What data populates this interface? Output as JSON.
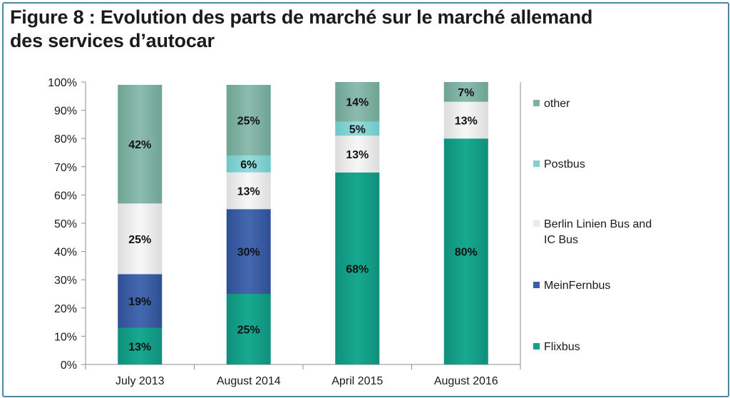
{
  "title_line1": "Figure 8 : Evolution des parts de marché sur le marché allemand",
  "title_line2": "des services d’autocar",
  "chart_data": {
    "type": "bar",
    "stacked": true,
    "categories": [
      "July 2013",
      "August 2014",
      "April 2015",
      "August 2016"
    ],
    "yticks": [
      "0%",
      "10%",
      "20%",
      "30%",
      "40%",
      "50%",
      "60%",
      "70%",
      "80%",
      "90%",
      "100%"
    ],
    "ylim": [
      0,
      100
    ],
    "series": [
      {
        "name": "Flixbus",
        "color": "#14a08b",
        "values": [
          13,
          25,
          68,
          80
        ],
        "labels": [
          "13%",
          "25%",
          "68%",
          "80%"
        ]
      },
      {
        "name": "MeinFernbus",
        "color": "#3a5ea6",
        "values": [
          19,
          30,
          0,
          0
        ],
        "labels": [
          "19%",
          "30%",
          "",
          ""
        ]
      },
      {
        "name": "Berlin Linien Bus and IC Bus",
        "color": "#eaeaea",
        "values": [
          25,
          13,
          13,
          13
        ],
        "labels": [
          "25%",
          "13%",
          "13%",
          "13%"
        ]
      },
      {
        "name": "Postbus",
        "color": "#7fd2d4",
        "values": [
          0,
          6,
          5,
          0
        ],
        "labels": [
          "",
          "6%",
          "5%",
          ""
        ]
      },
      {
        "name": "other",
        "color": "#7fb0a2",
        "values": [
          42,
          25,
          14,
          7
        ],
        "labels": [
          "42%",
          "25%",
          "14%",
          "7%"
        ]
      }
    ],
    "legend": {
      "position": "right",
      "order": [
        "other",
        "Postbus",
        "Berlin Linien Bus and IC Bus",
        "MeinFernbus",
        "Flixbus"
      ],
      "labels": {
        "other": [
          "other"
        ],
        "Postbus": [
          "Postbus"
        ],
        "Berlin Linien Bus and IC Bus": [
          "Berlin Linien Bus and",
          "IC Bus"
        ],
        "MeinFernbus": [
          "MeinFernbus"
        ],
        "Flixbus": [
          "Flixbus"
        ]
      }
    }
  }
}
